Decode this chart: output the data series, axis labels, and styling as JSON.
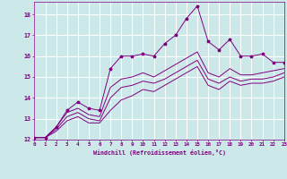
{
  "xlabel": "Windchill (Refroidissement éolien,°C)",
  "background_color": "#cce8e8",
  "grid_color": "#ffffff",
  "line_color": "#800080",
  "xmin": 0,
  "xmax": 23,
  "ymin": 12,
  "ymax": 18.6,
  "yticks": [
    12,
    13,
    14,
    15,
    16,
    17,
    18
  ],
  "xticks": [
    0,
    1,
    2,
    3,
    4,
    5,
    6,
    7,
    8,
    9,
    10,
    11,
    12,
    13,
    14,
    15,
    16,
    17,
    18,
    19,
    20,
    21,
    22,
    23
  ],
  "series": [
    [
      12.1,
      12.1,
      12.6,
      13.4,
      13.8,
      13.5,
      13.4,
      15.4,
      16.0,
      16.0,
      16.1,
      16.0,
      16.6,
      17.0,
      17.8,
      18.4,
      16.7,
      16.3,
      16.8,
      16.0,
      16.0,
      16.1,
      15.7,
      15.7
    ],
    [
      12.1,
      12.1,
      12.6,
      13.3,
      13.5,
      13.2,
      13.1,
      14.5,
      14.9,
      15.0,
      15.2,
      15.0,
      15.3,
      15.6,
      15.9,
      16.2,
      15.2,
      15.0,
      15.4,
      15.1,
      15.1,
      15.2,
      15.3,
      15.4
    ],
    [
      12.1,
      12.1,
      12.5,
      13.1,
      13.3,
      13.0,
      12.9,
      14.0,
      14.5,
      14.6,
      14.8,
      14.7,
      14.9,
      15.2,
      15.5,
      15.8,
      14.9,
      14.7,
      15.0,
      14.8,
      14.9,
      14.9,
      15.0,
      15.2
    ],
    [
      12.1,
      12.1,
      12.4,
      12.9,
      13.1,
      12.8,
      12.8,
      13.4,
      13.9,
      14.1,
      14.4,
      14.3,
      14.6,
      14.9,
      15.2,
      15.5,
      14.6,
      14.4,
      14.8,
      14.6,
      14.7,
      14.7,
      14.8,
      15.0
    ]
  ]
}
